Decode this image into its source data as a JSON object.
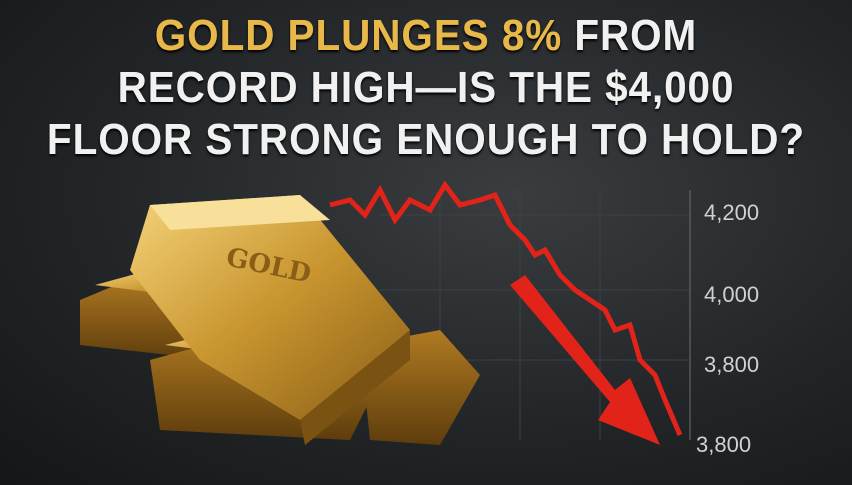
{
  "headline": {
    "line1_highlight": "GOLD PLUNGES 8%",
    "line1_rest": " FROM",
    "line2": "RECORD HIGH—IS THE $4,000",
    "line3": "FLOOR STRONG ENOUGH TO HOLD?"
  },
  "axis_labels": [
    "4,200",
    "4,000",
    "3,800",
    "3,800"
  ],
  "gold_bar_text": [
    "GOLD"
  ],
  "colors": {
    "gold": "#e8b94a",
    "trend_red": "#e2231a",
    "background": "#232628"
  }
}
